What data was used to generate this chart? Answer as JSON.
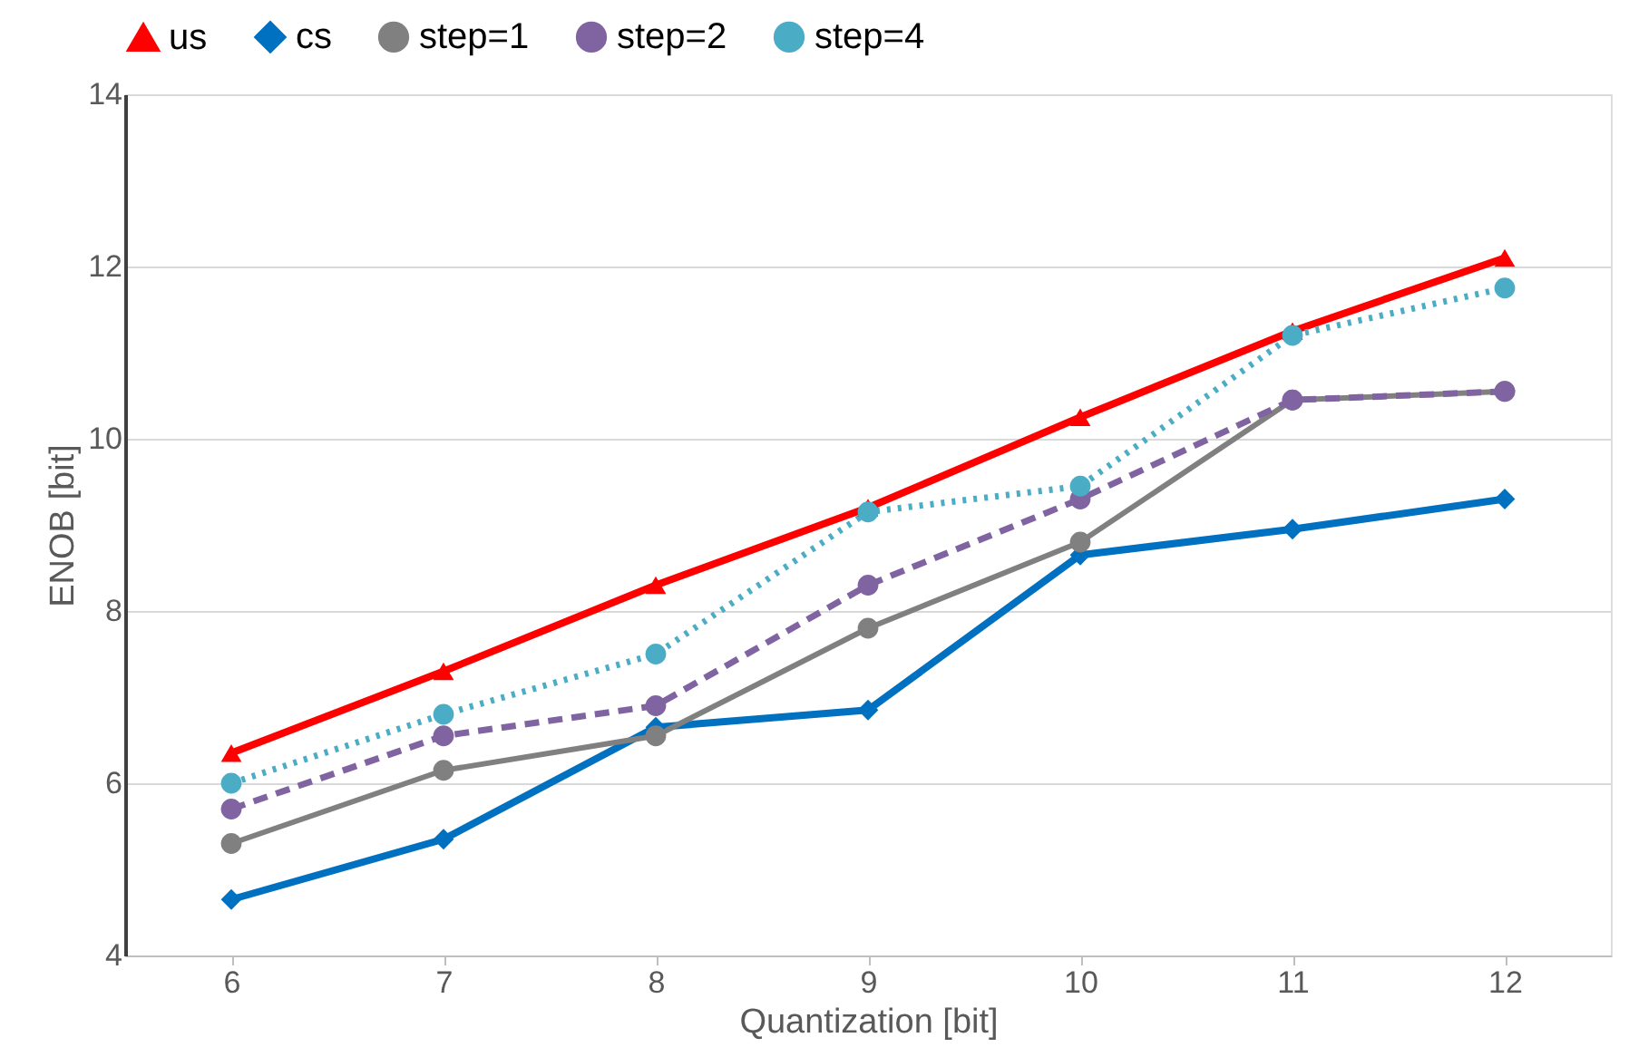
{
  "chart_data": {
    "type": "line",
    "xlabel": "Quantization [bit]",
    "ylabel": "ENOB [bit]",
    "categories": [
      "6",
      "7",
      "8",
      "9",
      "10",
      "11",
      "12"
    ],
    "ylim": [
      4,
      14
    ],
    "yticks": [
      4,
      6,
      8,
      10,
      12,
      14
    ],
    "grid": "y",
    "legend": "top",
    "series": [
      {
        "name": "us",
        "color": "#ff0000",
        "marker": "triangle",
        "line_style": "solid",
        "values": [
          6.35,
          7.3,
          8.3,
          9.2,
          10.25,
          11.25,
          12.1
        ]
      },
      {
        "name": "cs",
        "color": "#0070c0",
        "marker": "diamond",
        "line_style": "solid",
        "values": [
          4.65,
          5.35,
          6.65,
          6.85,
          8.65,
          8.95,
          9.3
        ]
      },
      {
        "name": "step=1",
        "color": "#808080",
        "marker": "circle",
        "line_style": "solid",
        "values": [
          5.3,
          6.15,
          6.55,
          7.8,
          8.8,
          10.45,
          10.55
        ]
      },
      {
        "name": "step=2",
        "color": "#8064a2",
        "marker": "circle",
        "line_style": "dashed",
        "values": [
          5.7,
          6.55,
          6.9,
          8.3,
          9.3,
          10.45,
          10.55
        ]
      },
      {
        "name": "step=4",
        "color": "#4bacc6",
        "marker": "circle",
        "line_style": "dotted",
        "values": [
          6.0,
          6.8,
          7.5,
          9.15,
          9.45,
          11.2,
          11.75
        ]
      }
    ]
  }
}
